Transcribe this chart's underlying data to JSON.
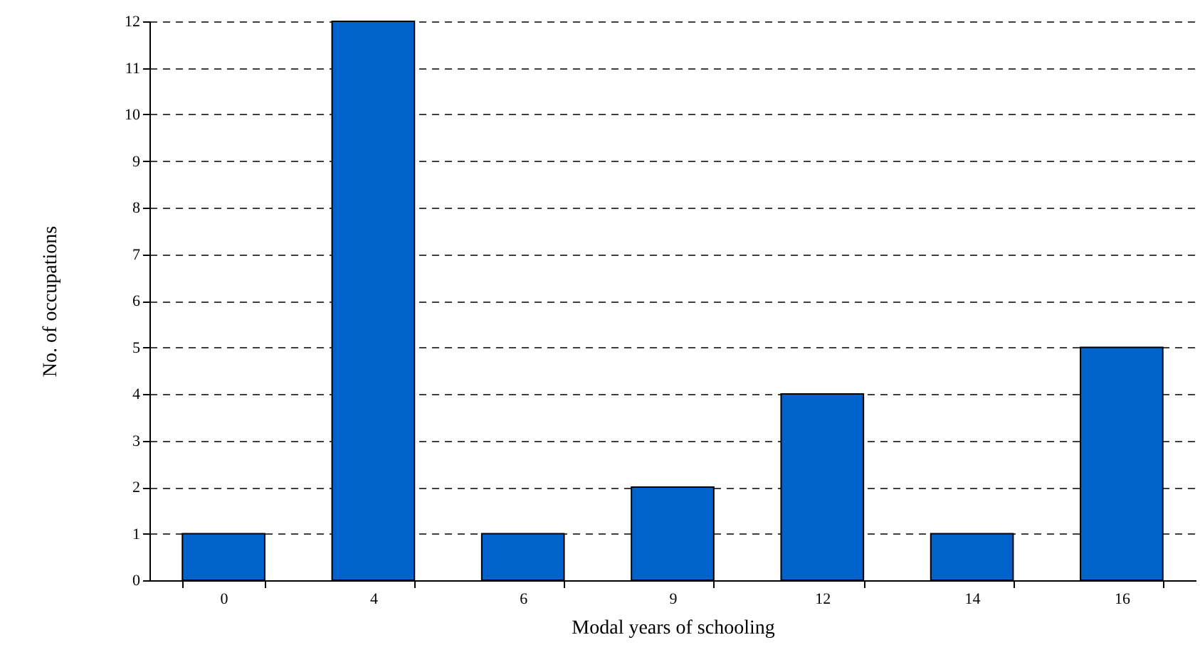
{
  "chart_data": {
    "type": "bar",
    "xlabel": "Modal years of schooling",
    "ylabel": "No. of occupations",
    "categories": [
      "0",
      "4",
      "6",
      "9",
      "12",
      "14",
      "16"
    ],
    "values": [
      1,
      12,
      1,
      2,
      4,
      1,
      5
    ],
    "color": "#0063cc",
    "ylim": [
      0,
      12
    ],
    "yticks": [
      0,
      1,
      2,
      3,
      4,
      5,
      6,
      7,
      8,
      9,
      10,
      11,
      12
    ],
    "grid": "y"
  }
}
